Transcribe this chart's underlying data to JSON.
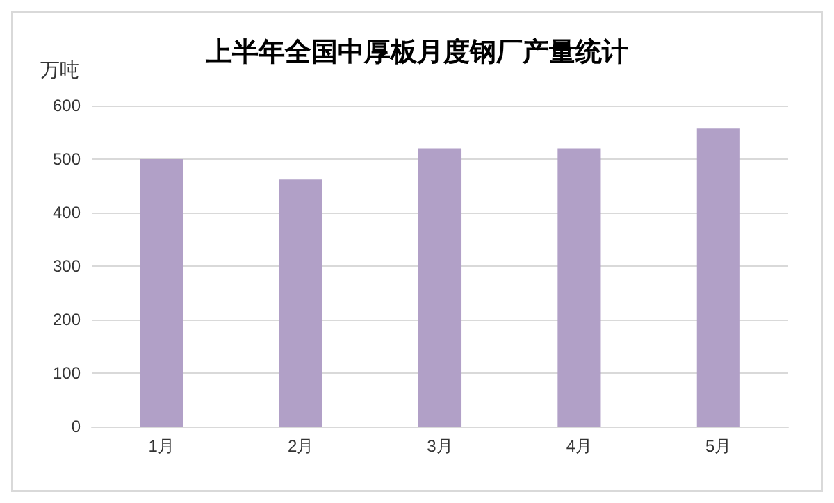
{
  "chart_data": {
    "type": "bar",
    "title": "上半年全国中厚板月度钢厂产量统计",
    "ylabel": "万吨",
    "categories": [
      "1月",
      "2月",
      "3月",
      "4月",
      "5月"
    ],
    "values": [
      500,
      462,
      520,
      520,
      558
    ],
    "color": "#b1a0c7",
    "ylim": [
      0,
      600
    ],
    "yticks": [
      0,
      100,
      200,
      300,
      400,
      500,
      600
    ],
    "grid": "y"
  }
}
